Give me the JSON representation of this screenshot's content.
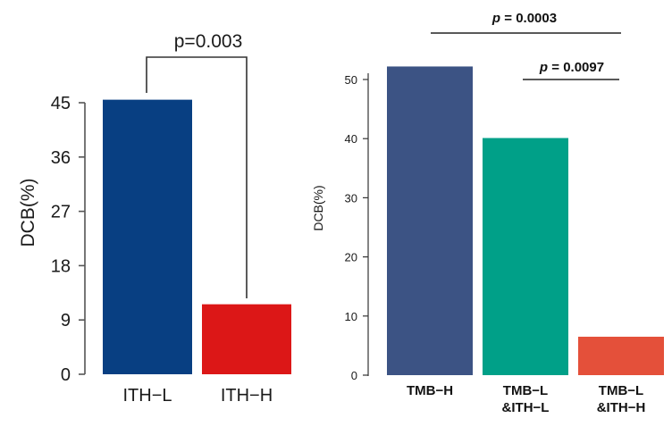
{
  "chart_data": [
    {
      "type": "bar",
      "categories": [
        "ITH−L",
        "ITH−H"
      ],
      "values": [
        45.5,
        11.6
      ],
      "colors": [
        "#083F82",
        "#DC1717"
      ],
      "ylabel": "DCB(%)",
      "xlabel": "",
      "ylim": [
        0,
        45
      ],
      "yticks": [
        0,
        9,
        18,
        27,
        36,
        45
      ],
      "tick_labels": [
        "0",
        "9",
        "18",
        "27",
        "36",
        "45"
      ],
      "annotation": "p=0.003",
      "grid": false
    },
    {
      "type": "bar",
      "categories": [
        "TMB−H",
        "TMB−L\n&ITH−L",
        "TMB−L\n&ITH−H"
      ],
      "values": [
        52.2,
        40.1,
        6.5
      ],
      "colors": [
        "#3C5384",
        "#00A088",
        "#E4503A"
      ],
      "ylabel": "DCB(%)",
      "xlabel": "",
      "ylim": [
        0,
        53
      ],
      "yticks": [
        0,
        10,
        20,
        30,
        40,
        50
      ],
      "tick_labels": [
        "0",
        "10",
        "20",
        "30",
        "40",
        "50"
      ],
      "annotations": [
        {
          "p_label": "p",
          "value_text": " = 0.0003"
        },
        {
          "p_label": "p",
          "value_text": " = 0.0097"
        }
      ],
      "grid": false
    }
  ]
}
